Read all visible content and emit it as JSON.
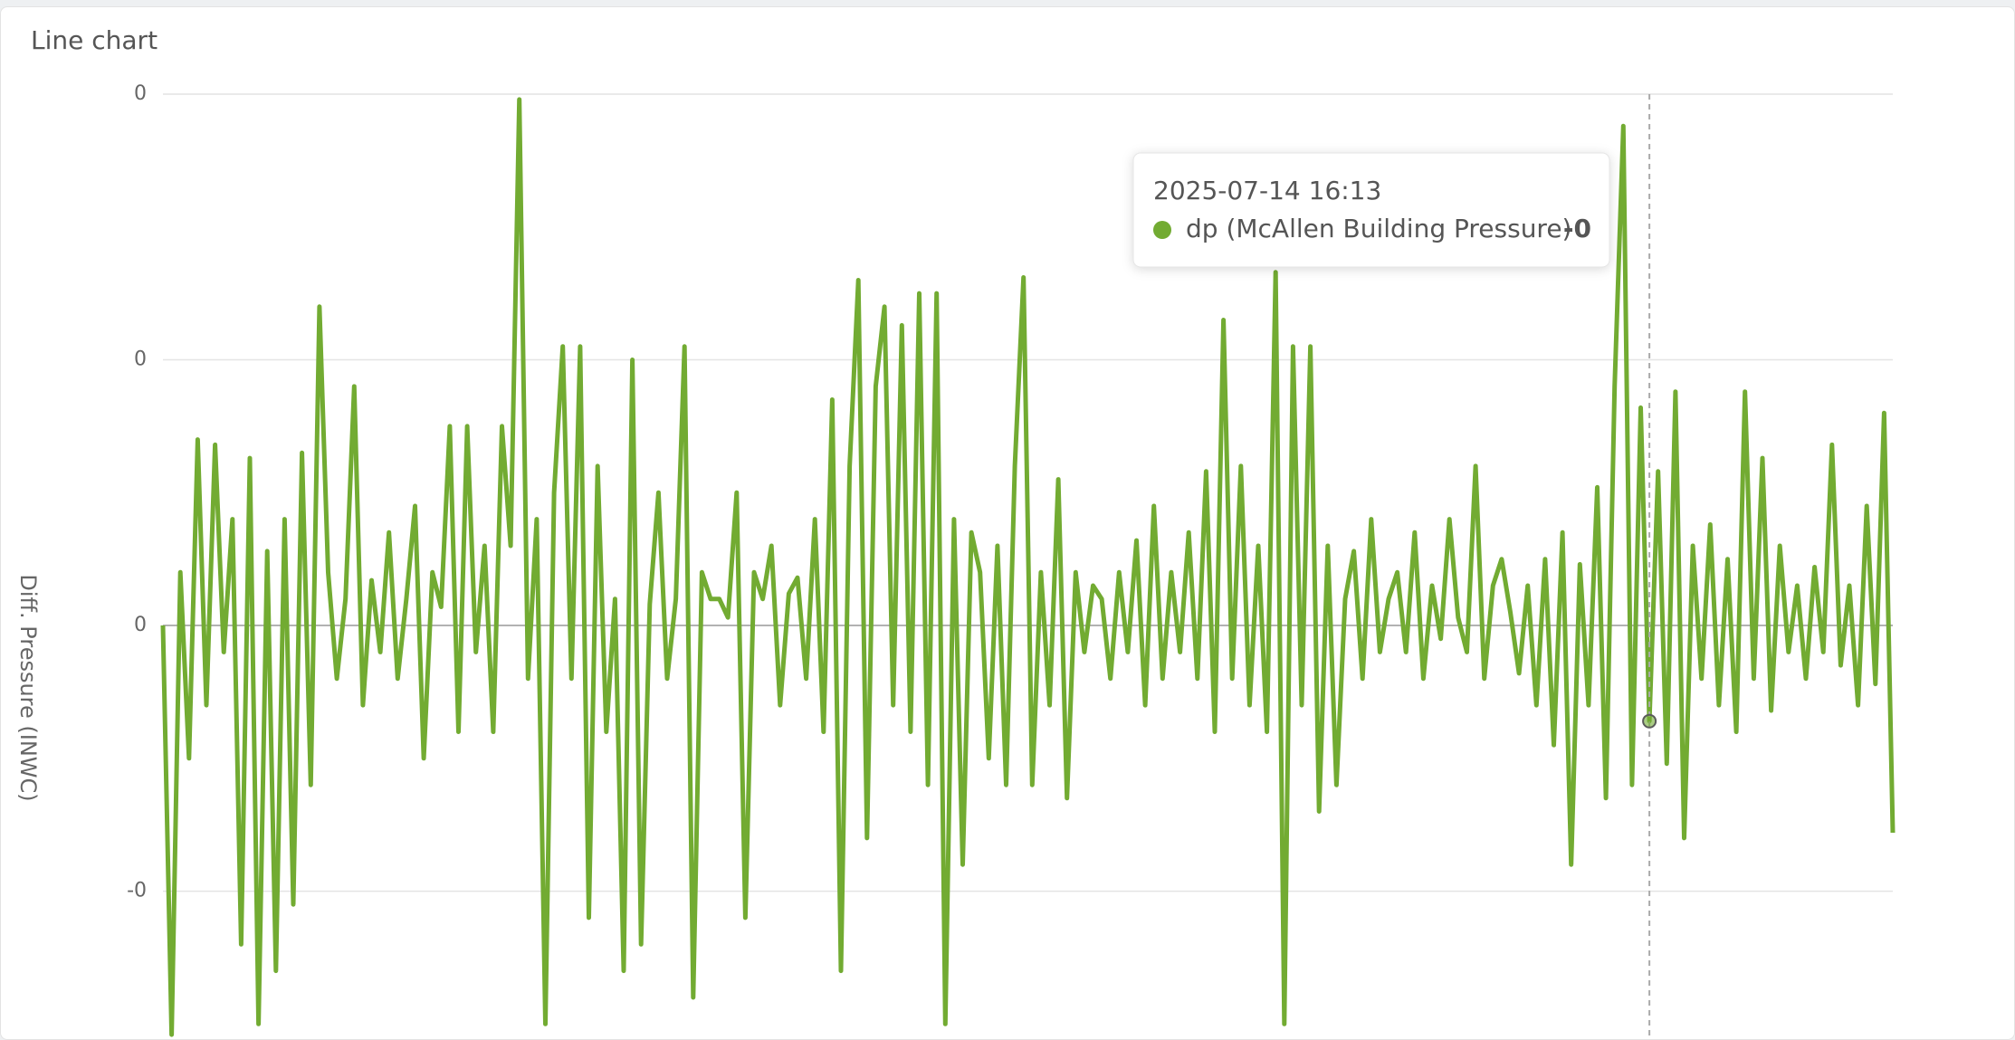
{
  "chart_data": {
    "type": "line",
    "title": "Line chart",
    "y_label": "Diff. Pressure (INWC)",
    "ylim": [
      -0.0155,
      0.02
    ],
    "yticks": [
      {
        "value": 0.02,
        "label": "0"
      },
      {
        "value": 0.01,
        "label": "0"
      },
      0,
      {
        "value": -0.01,
        "label": "-0"
      }
    ],
    "grid": true,
    "series": [
      {
        "name": "dp (McAllen Building Pressure)",
        "color": "#72ab32",
        "values": [
          0.0,
          -0.0154,
          0.002,
          -0.005,
          0.007,
          -0.003,
          0.0068,
          -0.001,
          0.004,
          -0.012,
          0.0063,
          -0.015,
          0.0028,
          -0.013,
          0.004,
          -0.0105,
          0.0065,
          -0.006,
          0.012,
          0.002,
          -0.002,
          0.001,
          0.009,
          -0.003,
          0.0017,
          -0.001,
          0.0035,
          -0.002,
          0.001,
          0.0045,
          -0.005,
          0.002,
          0.0007,
          0.0075,
          -0.004,
          0.0075,
          -0.001,
          0.003,
          -0.004,
          0.0075,
          0.003,
          0.0198,
          -0.002,
          0.004,
          -0.015,
          0.005,
          0.0105,
          -0.002,
          0.0105,
          -0.011,
          0.006,
          -0.004,
          0.001,
          -0.013,
          0.01,
          -0.012,
          0.0008,
          0.005,
          -0.002,
          0.001,
          0.0105,
          -0.014,
          0.002,
          0.001,
          0.001,
          0.0003,
          0.005,
          -0.011,
          0.002,
          0.001,
          0.003,
          -0.003,
          0.0012,
          0.0018,
          -0.002,
          0.004,
          -0.004,
          0.0085,
          -0.013,
          0.006,
          0.013,
          -0.008,
          0.009,
          0.012,
          -0.003,
          0.0113,
          -0.004,
          0.0125,
          -0.006,
          0.0125,
          -0.015,
          0.004,
          -0.009,
          0.0035,
          0.002,
          -0.005,
          0.003,
          -0.006,
          0.006,
          0.0131,
          -0.006,
          0.002,
          -0.003,
          0.0055,
          -0.0065,
          0.002,
          -0.001,
          0.0015,
          0.001,
          -0.002,
          0.002,
          -0.001,
          0.0032,
          -0.003,
          0.0045,
          -0.002,
          0.002,
          -0.001,
          0.0035,
          -0.002,
          0.0058,
          -0.004,
          0.0115,
          -0.002,
          0.006,
          -0.003,
          0.003,
          -0.004,
          0.0133,
          -0.015,
          0.0105,
          -0.003,
          0.0105,
          -0.007,
          0.003,
          -0.006,
          0.001,
          0.0028,
          -0.002,
          0.004,
          -0.001,
          0.001,
          0.002,
          -0.001,
          0.0035,
          -0.002,
          0.0015,
          -0.0005,
          0.004,
          0.0003,
          -0.001,
          0.006,
          -0.002,
          0.0015,
          0.0025,
          0.0005,
          -0.0018,
          0.0015,
          -0.003,
          0.0025,
          -0.0045,
          0.0035,
          -0.009,
          0.0023,
          -0.003,
          0.0052,
          -0.0065,
          0.009,
          0.0188,
          -0.006,
          0.0082,
          -0.0036,
          0.0058,
          -0.0052,
          0.0088,
          -0.008,
          0.003,
          -0.002,
          0.0038,
          -0.003,
          0.0025,
          -0.004,
          0.0088,
          -0.002,
          0.0063,
          -0.0032,
          0.003,
          -0.001,
          0.0015,
          -0.002,
          0.0022,
          -0.001,
          0.0068,
          -0.0015,
          0.0015,
          -0.003,
          0.0045,
          -0.0022,
          0.008,
          -0.0078
        ]
      }
    ],
    "tooltip": {
      "title": "2025-07-14 16:13",
      "value_label": "-0"
    }
  }
}
